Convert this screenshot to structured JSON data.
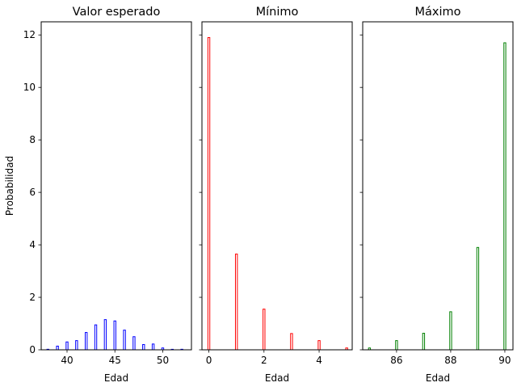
{
  "chart_data": [
    {
      "type": "bar",
      "title": "Valor esperado",
      "xlabel": "Edad",
      "ylabel": "Probabilidad",
      "color": "#0000ff",
      "xlim": [
        37.3,
        53.0
      ],
      "ylim": [
        0,
        12.5
      ],
      "xticks": [
        40,
        45,
        50
      ],
      "yticks": [
        0,
        2,
        4,
        6,
        8,
        10,
        12
      ],
      "bar_width": 0.2,
      "x": [
        38,
        39,
        40,
        41,
        42,
        43,
        44,
        45,
        46,
        47,
        48,
        49,
        50,
        51,
        52
      ],
      "values": [
        0.02,
        0.14,
        0.3,
        0.35,
        0.66,
        0.95,
        1.15,
        1.1,
        0.75,
        0.5,
        0.2,
        0.22,
        0.07,
        0.0,
        0.02
      ]
    },
    {
      "type": "bar",
      "title": "Mínimo",
      "xlabel": "Edad",
      "ylabel": "",
      "color": "#ff0000",
      "xlim": [
        -0.25,
        5.2
      ],
      "ylim": [
        0,
        12.5
      ],
      "xticks": [
        0,
        2,
        4
      ],
      "yticks": [
        0,
        2,
        4,
        6,
        8,
        10,
        12
      ],
      "bar_width": 0.07,
      "x": [
        0,
        1,
        2,
        3,
        4,
        5
      ],
      "values": [
        11.9,
        3.65,
        1.55,
        0.62,
        0.35,
        0.07
      ]
    },
    {
      "type": "bar",
      "title": "Máximo",
      "xlabel": "Edad",
      "ylabel": "",
      "color": "#008000",
      "xlim": [
        84.75,
        90.3
      ],
      "ylim": [
        0,
        12.5
      ],
      "xticks": [
        86,
        88,
        90
      ],
      "yticks": [
        0,
        2,
        4,
        6,
        8,
        10,
        12
      ],
      "bar_width": 0.07,
      "x": [
        85,
        86,
        87,
        88,
        89,
        90
      ],
      "values": [
        0.07,
        0.35,
        0.63,
        1.45,
        3.9,
        11.7
      ]
    }
  ]
}
